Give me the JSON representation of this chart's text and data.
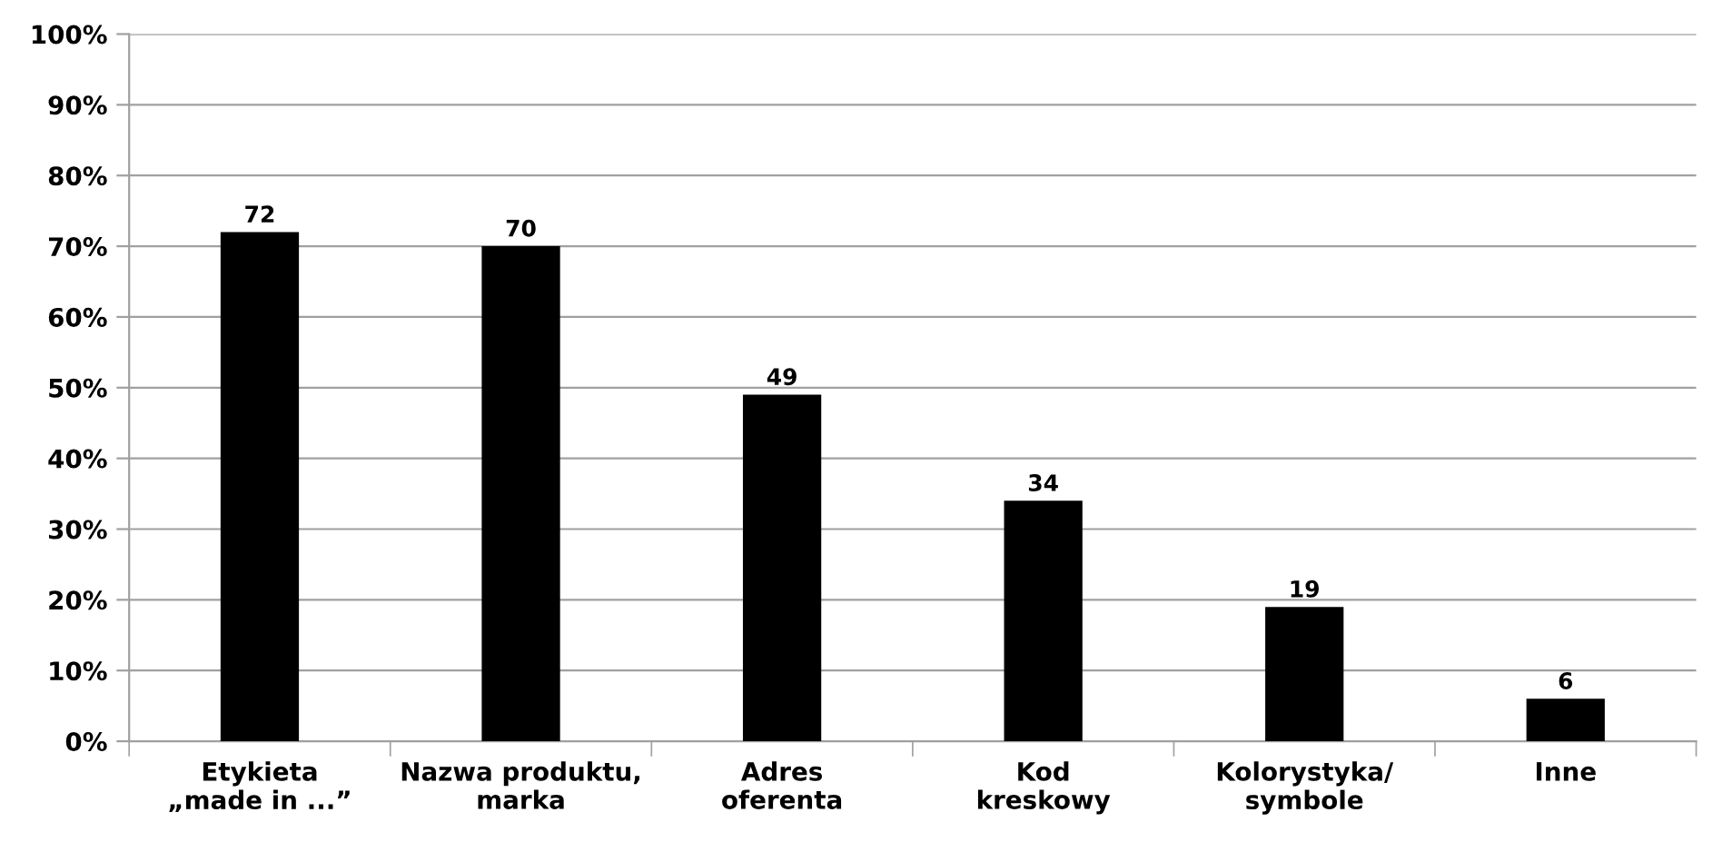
{
  "chart_data": {
    "type": "bar",
    "categories": [
      "Etykieta\n„made in ...”",
      "Nazwa produktu,\nmarka",
      "Adres\noferenta",
      "Kod\nkreskowy",
      "Kolorystyka/\nsymbole",
      "Inne"
    ],
    "values": [
      72,
      70,
      49,
      34,
      19,
      6
    ],
    "color": "#000000",
    "ylim": [
      0,
      100
    ],
    "yticks": [
      {
        "value": 0,
        "label": "0%"
      },
      {
        "value": 10,
        "label": "10%"
      },
      {
        "value": 20,
        "label": "20%"
      },
      {
        "value": 30,
        "label": "30%"
      },
      {
        "value": 40,
        "label": "40%"
      },
      {
        "value": 50,
        "label": "50%"
      },
      {
        "value": 60,
        "label": "60%"
      },
      {
        "value": 70,
        "label": "70%"
      },
      {
        "value": 80,
        "label": "80%"
      },
      {
        "value": 90,
        "label": "90%"
      },
      {
        "value": 100,
        "label": "100%"
      }
    ],
    "grid": "y",
    "data_labels": true
  }
}
